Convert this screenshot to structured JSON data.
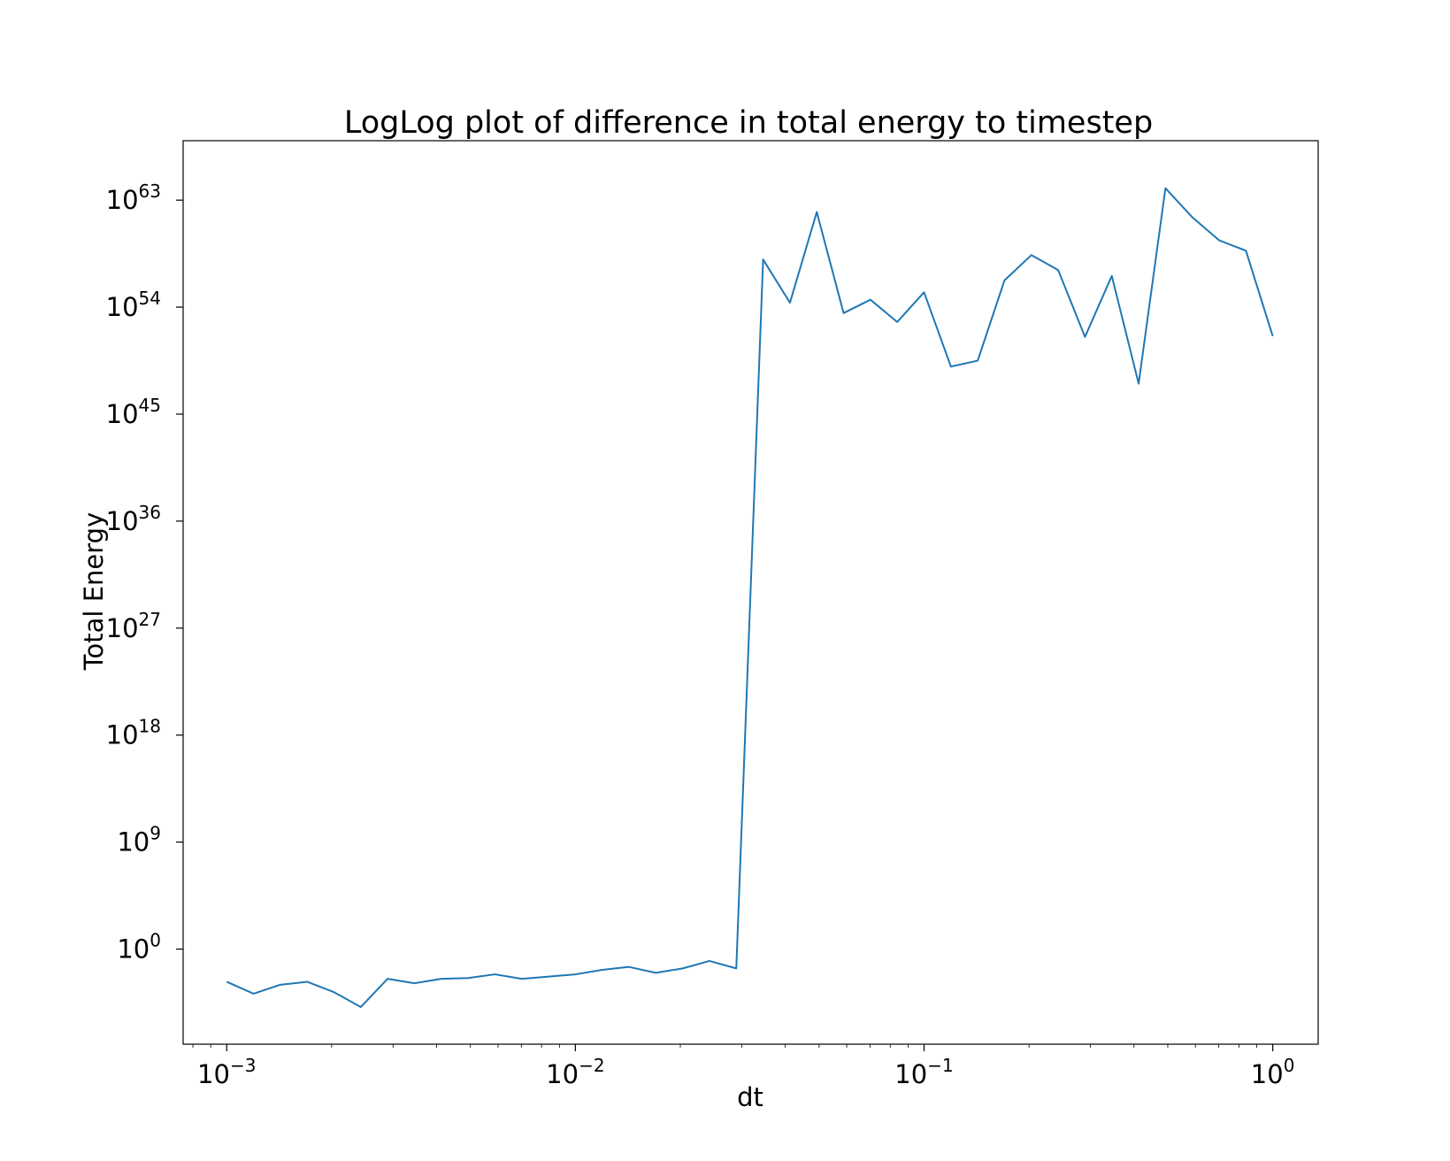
{
  "chart_data": {
    "type": "line",
    "title": "LogLog plot of difference in total energy to timestep",
    "xlabel": "dt",
    "ylabel": "Total Energy",
    "xscale": "log",
    "yscale": "log",
    "xlim": [
      0.00075,
      1.35
    ],
    "ylim": [
      1e-08,
      1e+68
    ],
    "grid": false,
    "line_color": "#1f77b4",
    "xticks": [
      {
        "base": "10",
        "exp": "−3",
        "value": 0.001
      },
      {
        "base": "10",
        "exp": "−2",
        "value": 0.01
      },
      {
        "base": "10",
        "exp": "−1",
        "value": 0.1
      },
      {
        "base": "10",
        "exp": "0",
        "value": 1
      }
    ],
    "yticks": [
      {
        "base": "10",
        "exp": "0",
        "value": 1
      },
      {
        "base": "10",
        "exp": "9",
        "value": 1000000000.0
      },
      {
        "base": "10",
        "exp": "18",
        "value": 1e+18
      },
      {
        "base": "10",
        "exp": "27",
        "value": 1e+27
      },
      {
        "base": "10",
        "exp": "36",
        "value": 1e+36
      },
      {
        "base": "10",
        "exp": "45",
        "value": 1e+45
      },
      {
        "base": "10",
        "exp": "54",
        "value": 1e+54
      },
      {
        "base": "10",
        "exp": "63",
        "value": 1e+63
      }
    ],
    "series": [
      {
        "x": [
          0.001,
          0.001194,
          0.001425,
          0.001701,
          0.002031,
          0.002424,
          0.002894,
          0.003455,
          0.004125,
          0.004924,
          0.005878,
          0.007017,
          0.008377,
          0.01,
          0.01194,
          0.01425,
          0.01701,
          0.02031,
          0.02424,
          0.02894,
          0.03455,
          0.04125,
          0.04924,
          0.05878,
          0.07017,
          0.08377,
          0.1,
          0.1194,
          0.1425,
          0.1701,
          0.2031,
          0.2424,
          0.2894,
          0.3455,
          0.4125,
          0.4924,
          0.5878,
          0.7017,
          0.8377,
          1.0
        ],
        "y": [
          0.00178,
          0.000178,
          0.001,
          0.00178,
          0.000237,
          1.33e-05,
          0.00316,
          0.00133,
          0.00316,
          0.00365,
          0.0075,
          0.00316,
          0.00487,
          0.0075,
          0.0178,
          0.0316,
          0.01,
          0.0237,
          0.1,
          0.0237,
          1e+58,
          2.37e+54,
          1e+62,
          3.16e+53,
          4.22e+54,
          5.62e+52,
          1.78e+55,
          1e+49,
          3.16e+49,
          1.78e+56,
          2.37e+58,
          1.33e+57,
          3.16e+51,
          4.22e+56,
          3.65e+47,
          1e+64,
          3.65e+61,
          4.22e+59,
          5.62e+58,
          3.65e+51
        ]
      }
    ]
  }
}
